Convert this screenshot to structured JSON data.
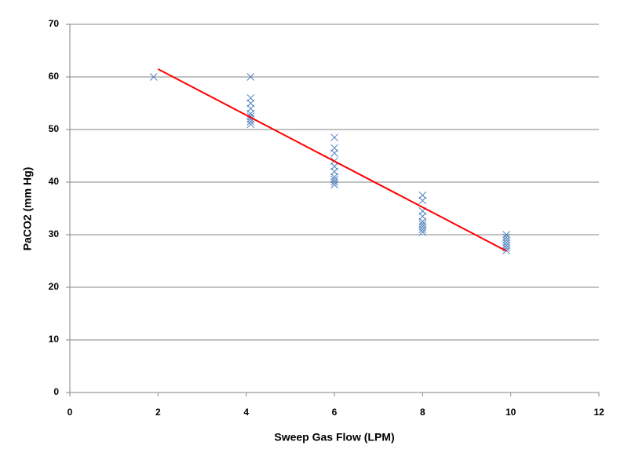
{
  "chart_data": {
    "type": "scatter",
    "x_label": "Sweep Gas Flow (LPM)",
    "y_label": "PaCO2 (mm Hg)",
    "xlim": [
      0,
      12
    ],
    "xticks": [
      0,
      2,
      4,
      6,
      8,
      10,
      12
    ],
    "ylim": [
      0,
      70
    ],
    "yticks": [
      0,
      10,
      20,
      30,
      40,
      50,
      60,
      70
    ],
    "grid": true,
    "series": [
      {
        "color": "#4f81bd",
        "x": [
          1.9,
          4.1,
          4.1,
          4.1,
          4.1,
          4.1,
          4.1,
          4.1,
          4.1,
          4.1,
          6,
          6,
          6,
          6,
          6,
          6,
          6,
          6,
          6,
          6,
          8,
          8,
          8,
          8,
          8,
          8,
          8,
          8,
          8,
          9.9,
          9.9,
          9.9,
          9.9,
          9.9,
          9.9,
          9.9
        ],
        "values": [
          60,
          60,
          56,
          55,
          54,
          53,
          52.5,
          52,
          51.5,
          51,
          48.5,
          46.5,
          45.5,
          44,
          43,
          42,
          41,
          40.5,
          40,
          39.5,
          37.5,
          36.5,
          34.5,
          33.5,
          32.5,
          32,
          31.5,
          31,
          30.5,
          30,
          29.5,
          29,
          28.5,
          28,
          27.5,
          27
        ]
      }
    ],
    "trendline": {
      "color": "#ff0000",
      "x": [
        2,
        9.9
      ],
      "y": [
        61.5,
        26.9
      ]
    }
  }
}
